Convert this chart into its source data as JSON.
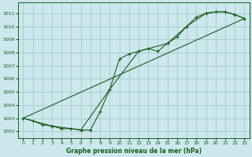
{
  "title": "Graphe pression niveau de la mer (hPa)",
  "bg_color": "#cce8ee",
  "grid_color": "#aacccc",
  "line_color": "#1a5c1a",
  "xlim": [
    -0.5,
    23.5
  ],
  "ylim": [
    1001.5,
    1011.8
  ],
  "xticks": [
    0,
    1,
    2,
    3,
    4,
    5,
    6,
    7,
    8,
    9,
    10,
    11,
    12,
    13,
    14,
    15,
    16,
    17,
    18,
    19,
    20,
    21,
    22,
    23
  ],
  "yticks": [
    1002,
    1003,
    1004,
    1005,
    1006,
    1007,
    1008,
    1009,
    1010,
    1011
  ],
  "series1_x": [
    0,
    1,
    2,
    3,
    4,
    5,
    6,
    7,
    8,
    9,
    10,
    11,
    12,
    13,
    14,
    15,
    16,
    17,
    18,
    19,
    20,
    21,
    22,
    23
  ],
  "series1_y": [
    1003.0,
    1002.8,
    1002.5,
    1002.4,
    1002.2,
    1002.2,
    1002.1,
    1002.1,
    1003.5,
    1005.2,
    1007.5,
    1007.9,
    1008.1,
    1008.3,
    1008.1,
    1008.7,
    1009.2,
    1010.0,
    1010.7,
    1011.0,
    1011.1,
    1011.1,
    1010.9,
    1010.6
  ],
  "series2_x": [
    0,
    3,
    6,
    9,
    12,
    15,
    17,
    19,
    20,
    21,
    22,
    23
  ],
  "series2_y": [
    1003.0,
    1002.4,
    1002.1,
    1005.2,
    1008.1,
    1008.7,
    1010.0,
    1011.0,
    1011.1,
    1011.1,
    1010.9,
    1010.6
  ],
  "series3_x": [
    0,
    23
  ],
  "series3_y": [
    1003.0,
    1010.6
  ]
}
